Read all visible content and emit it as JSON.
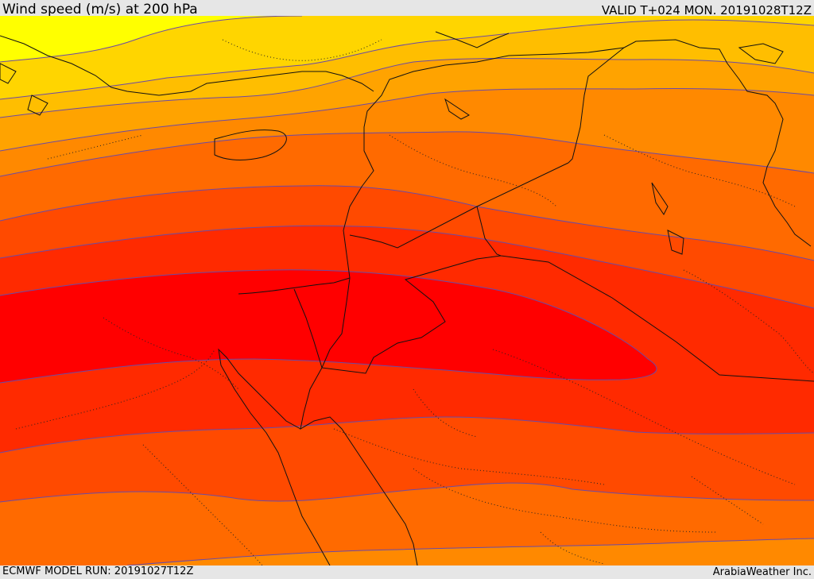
{
  "header": {
    "title": "Wind speed (m/s) at 200 hPa",
    "valid": "VALID T+024 MON. 20191028T12Z"
  },
  "footer": {
    "model_run": "ECMWF MODEL RUN: 20191027T12Z",
    "credit": "ArabiaWeather Inc."
  },
  "colors": {
    "background": "#e6e6e6",
    "contour_line": "#6b4aa6",
    "border_line": "#111111",
    "bands": [
      "#ffff00",
      "#ffd500",
      "#ffbe00",
      "#ffa300",
      "#ff8900",
      "#ff6a00",
      "#ff4a00",
      "#ff2a00",
      "#ff0000"
    ]
  }
}
